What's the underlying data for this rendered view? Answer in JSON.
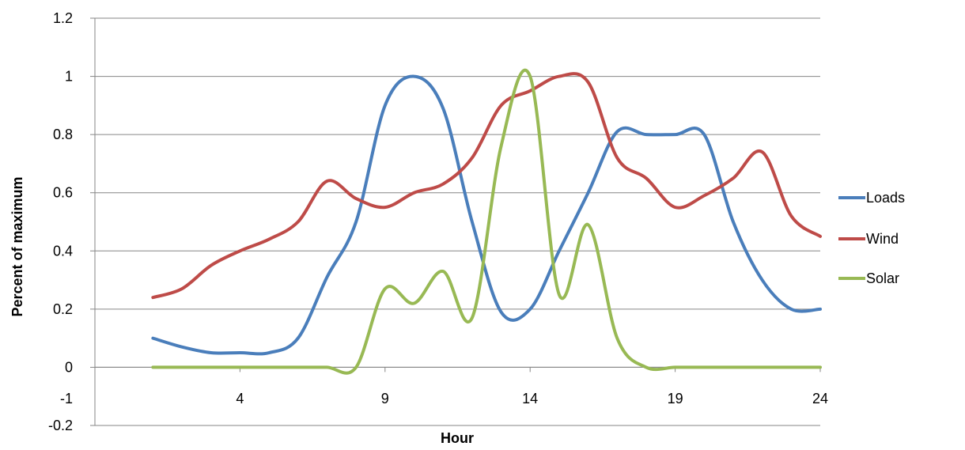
{
  "chart_data": {
    "type": "line",
    "title": "",
    "xlabel": "Hour",
    "ylabel": "Percent of maximum",
    "xlim": [
      -1,
      24
    ],
    "ylim": [
      -0.2,
      1.2
    ],
    "xticks": [
      -1,
      4,
      9,
      14,
      19,
      24
    ],
    "yticks": [
      -0.2,
      0,
      0.2,
      0.4,
      0.6,
      0.8,
      1,
      1.2
    ],
    "grid": "horizontal",
    "legend_position": "right",
    "x": [
      1,
      2,
      3,
      4,
      5,
      6,
      7,
      8,
      9,
      10,
      11,
      12,
      13,
      14,
      15,
      16,
      17,
      18,
      19,
      20,
      21,
      22,
      23,
      24
    ],
    "series": [
      {
        "name": "Loads",
        "color": "#4a7ebb",
        "values": [
          0.1,
          0.07,
          0.05,
          0.05,
          0.05,
          0.1,
          0.31,
          0.5,
          0.9,
          1.0,
          0.89,
          0.5,
          0.19,
          0.2,
          0.4,
          0.6,
          0.81,
          0.8,
          0.8,
          0.8,
          0.5,
          0.3,
          0.2,
          0.2
        ]
      },
      {
        "name": "Wind",
        "color": "#be4b48",
        "values": [
          0.24,
          0.27,
          0.35,
          0.4,
          0.44,
          0.5,
          0.64,
          0.58,
          0.55,
          0.6,
          0.63,
          0.72,
          0.9,
          0.95,
          1.0,
          0.98,
          0.72,
          0.65,
          0.55,
          0.59,
          0.65,
          0.74,
          0.52,
          0.45
        ]
      },
      {
        "name": "Solar",
        "color": "#98b954",
        "values": [
          0,
          0,
          0,
          0,
          0,
          0,
          0,
          0,
          0.27,
          0.22,
          0.33,
          0.17,
          0.76,
          1.0,
          0.25,
          0.49,
          0.1,
          0,
          0,
          0,
          0,
          0,
          0,
          0
        ]
      }
    ]
  }
}
